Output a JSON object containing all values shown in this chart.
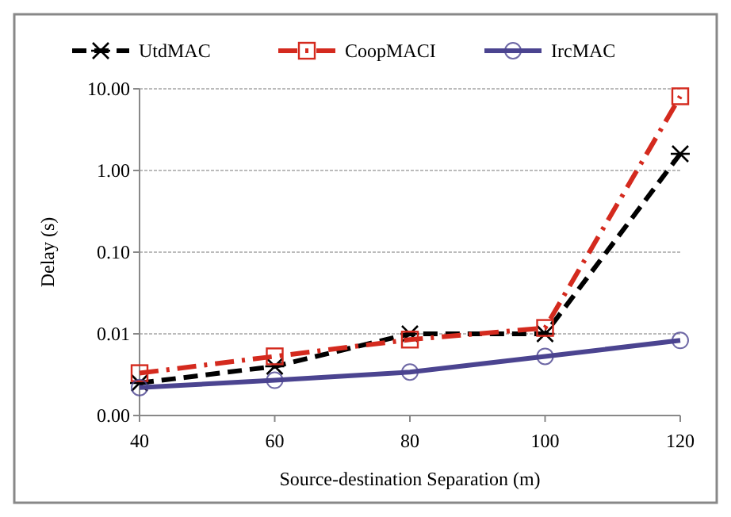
{
  "chart_data": {
    "type": "line",
    "xlabel": "Source-destination Separation (m)",
    "ylabel": "Delay (s)",
    "x": [
      40,
      60,
      80,
      100,
      120
    ],
    "log": "y",
    "grid": "y",
    "legend": "top",
    "xlim": [
      40,
      120
    ],
    "xticks": [
      40,
      60,
      80,
      100,
      120
    ],
    "ylim": [
      0.001,
      10
    ],
    "yticks": [
      {
        "value": 0.001,
        "label": "0.00"
      },
      {
        "value": 0.01,
        "label": "0.01"
      },
      {
        "value": 0.1,
        "label": "0.10"
      },
      {
        "value": 1,
        "label": "1.00"
      },
      {
        "value": 10,
        "label": "10.00"
      }
    ],
    "series": [
      {
        "name": "UtdMAC",
        "color": "#000000",
        "marker": "cross",
        "line_style": "dashed",
        "values": [
          0.0025,
          0.004,
          0.01,
          0.01,
          1.6
        ]
      },
      {
        "name": "CoopMACI",
        "color": "#d42a1e",
        "marker": "square",
        "line_style": "dashdot",
        "values": [
          0.0033,
          0.0053,
          0.0085,
          0.0118,
          8.1
        ]
      },
      {
        "name": "IrcMAC",
        "color": "#4b4490",
        "marker": "circle",
        "line_style": "solid",
        "values": [
          0.0022,
          0.0027,
          0.0034,
          0.0053,
          0.0083
        ]
      }
    ]
  }
}
